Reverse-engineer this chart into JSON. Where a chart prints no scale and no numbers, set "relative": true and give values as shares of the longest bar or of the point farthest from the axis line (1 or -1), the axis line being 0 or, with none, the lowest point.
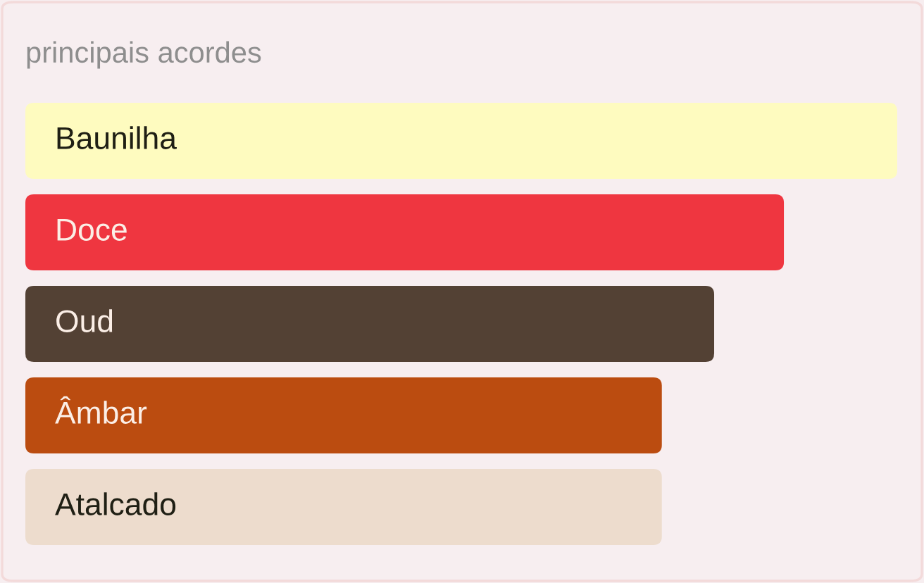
{
  "chart_data": {
    "type": "bar",
    "orientation": "horizontal",
    "relative": true,
    "title": "principais acordes",
    "categories": [
      "Baunilha",
      "Doce",
      "Oud",
      "Âmbar",
      "Atalcado"
    ],
    "values": [
      1,
      0.87,
      0.79,
      0.73,
      0.73
    ],
    "colors": [
      "#fefbbf",
      "#ef3640",
      "#534134",
      "#bb4c10",
      "#eddccd"
    ]
  }
}
